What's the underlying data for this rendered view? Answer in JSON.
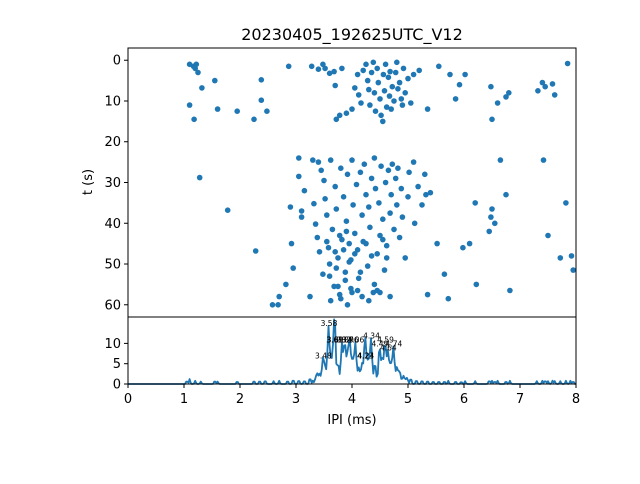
{
  "figure": {
    "title": "20230405_192625UTC_V12",
    "accent_color": "#1f77b4"
  },
  "chart_data": [
    {
      "type": "scatter",
      "title": "20230405_192625UTC_V12",
      "xlabel": "",
      "ylabel": "t (s)",
      "xlim": [
        0,
        8
      ],
      "ylim": [
        63,
        -3
      ],
      "y_inverted": true,
      "y_ticks": [
        0,
        10,
        20,
        30,
        40,
        50,
        60
      ],
      "grid": false,
      "marker_color": "#1f77b4",
      "points": [
        [
          1.1,
          1.0
        ],
        [
          1.17,
          1.5
        ],
        [
          1.22,
          1.0
        ],
        [
          1.2,
          2.0
        ],
        [
          1.25,
          3.0
        ],
        [
          1.55,
          5.0
        ],
        [
          1.32,
          6.8
        ],
        [
          1.1,
          11.0
        ],
        [
          1.18,
          14.5
        ],
        [
          1.6,
          12.0
        ],
        [
          1.95,
          12.5
        ],
        [
          2.25,
          14.5
        ],
        [
          2.38,
          9.8
        ],
        [
          2.48,
          12.5
        ],
        [
          2.38,
          4.8
        ],
        [
          2.87,
          1.5
        ],
        [
          3.28,
          1.5
        ],
        [
          3.4,
          2.2
        ],
        [
          3.52,
          2.0
        ],
        [
          3.48,
          1.0
        ],
        [
          3.6,
          3.2
        ],
        [
          3.68,
          2.8
        ],
        [
          3.7,
          6.2
        ],
        [
          3.82,
          2.0
        ],
        [
          3.78,
          13.5
        ],
        [
          3.72,
          14.5
        ],
        [
          3.9,
          13.0
        ],
        [
          4.0,
          12.0
        ],
        [
          4.05,
          6.8
        ],
        [
          4.1,
          3.5
        ],
        [
          4.12,
          8.5
        ],
        [
          4.16,
          10.5
        ],
        [
          4.2,
          2.5
        ],
        [
          4.25,
          1.0
        ],
        [
          4.28,
          5.0
        ],
        [
          4.3,
          7.2
        ],
        [
          4.32,
          11.0
        ],
        [
          4.35,
          3.0
        ],
        [
          4.38,
          0.5
        ],
        [
          4.4,
          8.0
        ],
        [
          4.42,
          12.5
        ],
        [
          4.45,
          2.0
        ],
        [
          4.47,
          5.5
        ],
        [
          4.5,
          9.5
        ],
        [
          4.52,
          13.5
        ],
        [
          4.55,
          15.0
        ],
        [
          4.56,
          3.5
        ],
        [
          4.58,
          7.5
        ],
        [
          4.6,
          1.0
        ],
        [
          4.62,
          11.5
        ],
        [
          4.65,
          4.2
        ],
        [
          4.67,
          8.8
        ],
        [
          4.68,
          2.8
        ],
        [
          4.7,
          12.0
        ],
        [
          4.72,
          6.5
        ],
        [
          4.75,
          10.0
        ],
        [
          4.78,
          3.0
        ],
        [
          4.8,
          0.5
        ],
        [
          4.82,
          7.0
        ],
        [
          4.85,
          5.5
        ],
        [
          4.88,
          9.5
        ],
        [
          4.9,
          11.0
        ],
        [
          4.92,
          2.0
        ],
        [
          4.95,
          8.0
        ],
        [
          5.0,
          4.5
        ],
        [
          5.05,
          10.5
        ],
        [
          5.1,
          3.5
        ],
        [
          5.2,
          2.5
        ],
        [
          5.35,
          12.0
        ],
        [
          5.55,
          1.5
        ],
        [
          5.75,
          3.5
        ],
        [
          5.85,
          9.5
        ],
        [
          5.92,
          6.0
        ],
        [
          6.02,
          3.5
        ],
        [
          6.48,
          6.5
        ],
        [
          6.5,
          14.5
        ],
        [
          6.6,
          10.5
        ],
        [
          6.75,
          9.0
        ],
        [
          6.8,
          8.0
        ],
        [
          7.32,
          7.5
        ],
        [
          7.4,
          5.5
        ],
        [
          7.45,
          6.5
        ],
        [
          7.58,
          5.8
        ],
        [
          7.62,
          8.5
        ],
        [
          7.85,
          0.8
        ],
        [
          1.28,
          28.8
        ],
        [
          1.78,
          36.8
        ],
        [
          2.28,
          46.8
        ],
        [
          2.58,
          60.0
        ],
        [
          2.68,
          60.0
        ],
        [
          2.7,
          58.0
        ],
        [
          2.9,
          36.0
        ],
        [
          2.92,
          45.0
        ],
        [
          2.95,
          51.0
        ],
        [
          2.82,
          55.0
        ],
        [
          3.05,
          28.5
        ],
        [
          3.05,
          24.0
        ],
        [
          3.1,
          37.0
        ],
        [
          3.15,
          32.0
        ],
        [
          3.1,
          38.5
        ],
        [
          3.25,
          58.0
        ],
        [
          3.3,
          24.5
        ],
        [
          3.32,
          35.2
        ],
        [
          3.35,
          40.2
        ],
        [
          3.38,
          43.5
        ],
        [
          3.4,
          25.0
        ],
        [
          3.42,
          47.0
        ],
        [
          3.45,
          27.0
        ],
        [
          3.48,
          52.5
        ],
        [
          3.5,
          29.5
        ],
        [
          3.52,
          34.0
        ],
        [
          3.55,
          38.0
        ],
        [
          3.58,
          46.0
        ],
        [
          3.6,
          50.0
        ],
        [
          3.62,
          24.5
        ],
        [
          3.65,
          41.5
        ],
        [
          3.68,
          55.5
        ],
        [
          3.7,
          31.0
        ],
        [
          3.72,
          36.5
        ],
        [
          3.75,
          48.5
        ],
        [
          3.78,
          57.5
        ],
        [
          3.8,
          26.5
        ],
        [
          3.82,
          44.0
        ],
        [
          3.85,
          33.5
        ],
        [
          3.88,
          52.0
        ],
        [
          3.9,
          39.5
        ],
        [
          3.92,
          28.0
        ],
        [
          3.95,
          49.5
        ],
        [
          3.98,
          56.0
        ],
        [
          4.0,
          24.5
        ],
        [
          4.02,
          35.5
        ],
        [
          4.05,
          42.5
        ],
        [
          4.08,
          30.5
        ],
        [
          4.1,
          46.5
        ],
        [
          4.12,
          53.5
        ],
        [
          4.15,
          27.5
        ],
        [
          4.18,
          38.0
        ],
        [
          4.2,
          44.5
        ],
        [
          4.22,
          25.5
        ],
        [
          4.25,
          33.0
        ],
        [
          4.28,
          50.5
        ],
        [
          4.3,
          36.0
        ],
        [
          4.32,
          41.0
        ],
        [
          4.35,
          29.0
        ],
        [
          4.38,
          57.0
        ],
        [
          4.4,
          24.0
        ],
        [
          4.42,
          31.5
        ],
        [
          4.45,
          47.5
        ],
        [
          4.48,
          35.0
        ],
        [
          4.5,
          43.0
        ],
        [
          4.52,
          26.0
        ],
        [
          4.55,
          39.0
        ],
        [
          4.58,
          51.5
        ],
        [
          4.6,
          30.0
        ],
        [
          4.62,
          45.5
        ],
        [
          4.65,
          27.0
        ],
        [
          4.68,
          37.5
        ],
        [
          4.7,
          33.0
        ],
        [
          4.72,
          25.5
        ],
        [
          4.75,
          41.5
        ],
        [
          4.78,
          29.0
        ],
        [
          4.8,
          35.5
        ],
        [
          4.82,
          26.5
        ],
        [
          4.85,
          43.5
        ],
        [
          4.88,
          31.5
        ],
        [
          4.9,
          38.5
        ],
        [
          4.95,
          48.5
        ],
        [
          5.0,
          33.5
        ],
        [
          5.02,
          27.5
        ],
        [
          5.1,
          25.0
        ],
        [
          5.12,
          40.0
        ],
        [
          5.18,
          31.0
        ],
        [
          5.25,
          35.5
        ],
        [
          5.3,
          28.0
        ],
        [
          5.32,
          33.0
        ],
        [
          5.4,
          32.5
        ],
        [
          5.35,
          57.5
        ],
        [
          5.52,
          45.0
        ],
        [
          5.65,
          52.5
        ],
        [
          5.72,
          58.5
        ],
        [
          5.98,
          46.0
        ],
        [
          6.1,
          45.0
        ],
        [
          6.2,
          35.0
        ],
        [
          6.22,
          55.0
        ],
        [
          6.45,
          42.0
        ],
        [
          6.48,
          38.5
        ],
        [
          6.5,
          36.5
        ],
        [
          6.55,
          40.0
        ],
        [
          6.65,
          24.5
        ],
        [
          6.75,
          33.0
        ],
        [
          6.82,
          56.5
        ],
        [
          7.42,
          24.5
        ],
        [
          7.5,
          43.0
        ],
        [
          7.72,
          48.5
        ],
        [
          7.82,
          35.0
        ],
        [
          7.92,
          48.0
        ],
        [
          7.95,
          51.5
        ],
        [
          3.55,
          44.5
        ],
        [
          3.6,
          53.0
        ],
        [
          3.62,
          59.0
        ],
        [
          3.7,
          47.0
        ],
        [
          3.72,
          51.0
        ],
        [
          3.75,
          55.5
        ],
        [
          3.78,
          43.0
        ],
        [
          3.8,
          58.5
        ],
        [
          3.85,
          46.5
        ],
        [
          3.88,
          54.0
        ],
        [
          3.9,
          42.0
        ],
        [
          3.92,
          60.0
        ],
        [
          3.95,
          45.0
        ],
        [
          3.98,
          49.0
        ],
        [
          4.0,
          57.0
        ],
        [
          4.05,
          47.5
        ],
        [
          4.1,
          56.5
        ],
        [
          4.15,
          52.0
        ],
        [
          4.18,
          58.0
        ],
        [
          4.25,
          45.0
        ],
        [
          4.3,
          59.0
        ],
        [
          4.35,
          48.0
        ],
        [
          4.4,
          55.0
        ],
        [
          4.45,
          56.5
        ],
        [
          4.5,
          57.0
        ],
        [
          4.55,
          44.0
        ],
        [
          4.62,
          48.5
        ],
        [
          4.68,
          58.0
        ]
      ]
    },
    {
      "type": "line",
      "title": "",
      "xlabel": "IPI (ms)",
      "ylabel": "",
      "xlim": [
        0,
        8
      ],
      "ylim": [
        0,
        16.5
      ],
      "x_ticks": [
        0,
        1,
        2,
        3,
        4,
        5,
        6,
        7,
        8
      ],
      "y_ticks": [
        0,
        5,
        10
      ],
      "grid": false,
      "line_color": "#1f77b4",
      "peaks": [
        {
          "x": 3.48,
          "y": 6
        },
        {
          "x": 3.58,
          "y": 14
        },
        {
          "x": 3.68,
          "y": 10
        },
        {
          "x": 3.69,
          "y": 10
        },
        {
          "x": 3.82,
          "y": 10
        },
        {
          "x": 3.87,
          "y": 10
        },
        {
          "x": 3.96,
          "y": 10
        },
        {
          "x": 4.06,
          "y": 10
        },
        {
          "x": 4.23,
          "y": 6
        },
        {
          "x": 4.24,
          "y": 6
        },
        {
          "x": 4.34,
          "y": 11
        },
        {
          "x": 4.49,
          "y": 9
        },
        {
          "x": 4.59,
          "y": 10
        },
        {
          "x": 4.64,
          "y": 8
        },
        {
          "x": 4.74,
          "y": 9
        }
      ],
      "peak_labels": [
        "3.48",
        "3.58",
        "3.68",
        "3.69",
        "3.82",
        "3.87",
        "3.96",
        "4.06",
        "4.23",
        "4.24",
        "4.34",
        "4.49",
        "4.59",
        "4.64",
        "4.74"
      ],
      "background_blips": [
        [
          1.05,
          0.8
        ],
        [
          1.1,
          1.2
        ],
        [
          1.2,
          0.8
        ],
        [
          1.3,
          0.6
        ],
        [
          1.55,
          0.8
        ],
        [
          1.6,
          0.6
        ],
        [
          1.95,
          0.7
        ],
        [
          2.25,
          0.8
        ],
        [
          2.35,
          0.8
        ],
        [
          2.45,
          0.9
        ],
        [
          2.6,
          0.7
        ],
        [
          2.7,
          0.8
        ],
        [
          2.85,
          0.8
        ],
        [
          2.95,
          1.1
        ],
        [
          3.05,
          1.0
        ],
        [
          3.15,
          0.9
        ],
        [
          3.25,
          1.6
        ],
        [
          3.3,
          0.8
        ],
        [
          3.38,
          1.2
        ],
        [
          5.05,
          1.5
        ],
        [
          5.15,
          1.0
        ],
        [
          5.25,
          0.9
        ],
        [
          5.35,
          0.8
        ],
        [
          5.45,
          0.7
        ],
        [
          5.55,
          0.7
        ],
        [
          5.65,
          0.7
        ],
        [
          5.72,
          0.8
        ],
        [
          5.85,
          0.7
        ],
        [
          5.95,
          0.6
        ],
        [
          6.02,
          0.7
        ],
        [
          6.2,
          0.7
        ],
        [
          6.45,
          0.9
        ],
        [
          6.5,
          0.8
        ],
        [
          6.55,
          0.7
        ],
        [
          6.6,
          0.8
        ],
        [
          6.75,
          0.7
        ],
        [
          6.82,
          0.8
        ],
        [
          7.3,
          0.7
        ],
        [
          7.4,
          0.8
        ],
        [
          7.45,
          0.9
        ],
        [
          7.5,
          0.7
        ],
        [
          7.58,
          0.8
        ],
        [
          7.62,
          0.7
        ],
        [
          7.72,
          0.7
        ],
        [
          7.82,
          0.8
        ],
        [
          7.9,
          0.8
        ],
        [
          7.95,
          0.7
        ]
      ]
    }
  ]
}
